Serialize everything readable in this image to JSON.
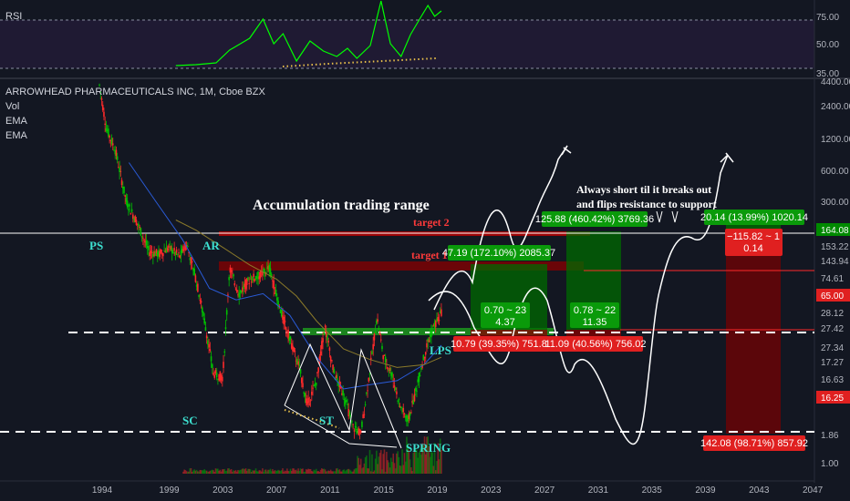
{
  "header": {
    "rsi_label": "RSI",
    "symbol": "ARROWHEAD PHARMACEUTICALS INC, 1M, Cboe BZX",
    "studies": [
      "Vol",
      "EMA",
      "EMA"
    ]
  },
  "colors": {
    "background": "#131722",
    "rsi_band": "#1f1a33",
    "rsi_line": "#00ff00",
    "up": "#00c000",
    "down": "#ff2a2a",
    "ema_fast": "#2a5bd7",
    "ema_slow": "#8b7a2a",
    "zone_green": "#008a00",
    "zone_red": "#8a0000",
    "label_green": "#0a9a0a",
    "label_red": "#e02020",
    "wyckoff_text": "#3de0d0",
    "white": "#ffffff"
  },
  "chart_data": [
    {
      "type": "line",
      "name": "rsi-pane",
      "y_ticks": [
        "75.00",
        "50.00",
        "35.00"
      ],
      "ylim": [
        25,
        100
      ],
      "levels": [
        70,
        30
      ],
      "x": [
        1999.5,
        2001,
        2002.5,
        2003.5,
        2005,
        2006,
        2006.8,
        2007.5,
        2008.5,
        2009.5,
        2010.5,
        2011.5,
        2012.3,
        2013,
        2014,
        2014.8,
        2015.5,
        2016.3,
        2017,
        2017.8,
        2018.3,
        2018.8,
        2019.3
      ],
      "y": [
        28,
        29,
        31,
        45,
        58,
        79,
        52,
        63,
        33,
        55,
        44,
        38,
        47,
        36,
        50,
        99,
        52,
        38,
        62,
        82,
        94,
        82,
        88
      ]
    },
    {
      "type": "candlestick",
      "name": "price-pane",
      "title": "Accumulation trading range",
      "y_scale": "log",
      "y_ticks": [
        "4400.00",
        "2400.00",
        "1200.00",
        "600.00",
        "300.00",
        "153.22",
        "143.94",
        "74.61",
        "28.12",
        "27.42",
        "27.34",
        "17.27",
        "16.63",
        "1.86",
        "1.00"
      ],
      "price_tags": [
        {
          "value": "164.08",
          "color": "#008a00"
        },
        {
          "value": "65.00",
          "color": "#e02020"
        },
        {
          "value": "16.25",
          "color": "#e02020"
        }
      ],
      "x_ticks": [
        "1994",
        "1999",
        "2003",
        "2007",
        "2011",
        "2015",
        "2019",
        "2023",
        "2027",
        "2031",
        "2035",
        "2039",
        "2043",
        "2047"
      ],
      "wyckoff_labels": [
        "PS",
        "AR",
        "SC",
        "ST",
        "SPRING",
        "LPS"
      ],
      "targets": [
        "target 2",
        "target 1"
      ],
      "note_lines": [
        "Always short til it breaks out",
        "and flips resistance to support"
      ],
      "position_labels": [
        {
          "text": "47.19 (172.10%) 2085.37",
          "color": "#0a9a0a"
        },
        {
          "text": "125.88 (460.42%) 3769.36",
          "color": "#0a9a0a"
        },
        {
          "text": "20.14 (13.99%) 1020.14",
          "color": "#0a9a0a"
        },
        {
          "text": "10.79 (39.35%) 751.83",
          "color": "#e02020"
        },
        {
          "text": "11.09 (40.56%) 756.02",
          "color": "#e02020"
        },
        {
          "text": "142.08 (98.71%) 857.92",
          "color": "#e02020"
        }
      ],
      "ratio_labels": [
        {
          "lines": [
            "0.70 ~ 23",
            "4.37"
          ],
          "color": "#0a9a0a"
        },
        {
          "lines": [
            "0.78 ~ 22",
            "11.35"
          ],
          "color": "#0a9a0a"
        },
        {
          "lines": [
            "−115.82 ~ 1",
            "0.14"
          ],
          "color": "#e02020"
        }
      ],
      "series": [
        {
          "name": "price",
          "x": [
            1993.8,
            1994.3,
            1995,
            1995.8,
            1996.6,
            1997.5,
            1998.3,
            1999,
            1999.8,
            2000.3,
            2001,
            2001.7,
            2002.3,
            2003,
            2003.5,
            2004.2,
            2005,
            2005.8,
            2006.5,
            2007.2,
            2008,
            2008.7,
            2009.3,
            2010,
            2010.6,
            2011.3,
            2012,
            2012.7,
            2013.3,
            2014,
            2014.5,
            2015,
            2015.6,
            2016.2,
            2016.8,
            2017.3,
            2017.8,
            2018.3,
            2018.8,
            2019.3
          ],
          "y": [
            3800,
            1500,
            900,
            300,
            190,
            100,
            95,
            110,
            90,
            120,
            55,
            20,
            7,
            6.5,
            70,
            40,
            55,
            60,
            70,
            30,
            15,
            8,
            3.5,
            6,
            20,
            7,
            4.5,
            2.2,
            1.9,
            8,
            24,
            10,
            7,
            3.5,
            2.5,
            4.2,
            8,
            14,
            20,
            26
          ]
        },
        {
          "name": "EMA fast",
          "x": [
            1996,
            1998,
            2000,
            2002,
            2004,
            2006,
            2008,
            2010,
            2012,
            2014,
            2016,
            2018,
            2019.3
          ],
          "y": [
            700,
            300,
            130,
            45,
            35,
            40,
            25,
            10,
            5,
            5.5,
            6,
            8.5,
            13
          ]
        },
        {
          "name": "EMA slow",
          "x": [
            1999.5,
            2001,
            2003,
            2005,
            2007,
            2008.5,
            2010,
            2012,
            2014,
            2016,
            2018,
            2019.3
          ],
          "y": [
            200,
            160,
            110,
            75,
            55,
            38,
            22,
            12,
            9.5,
            8,
            8.5,
            10
          ]
        }
      ]
    }
  ]
}
